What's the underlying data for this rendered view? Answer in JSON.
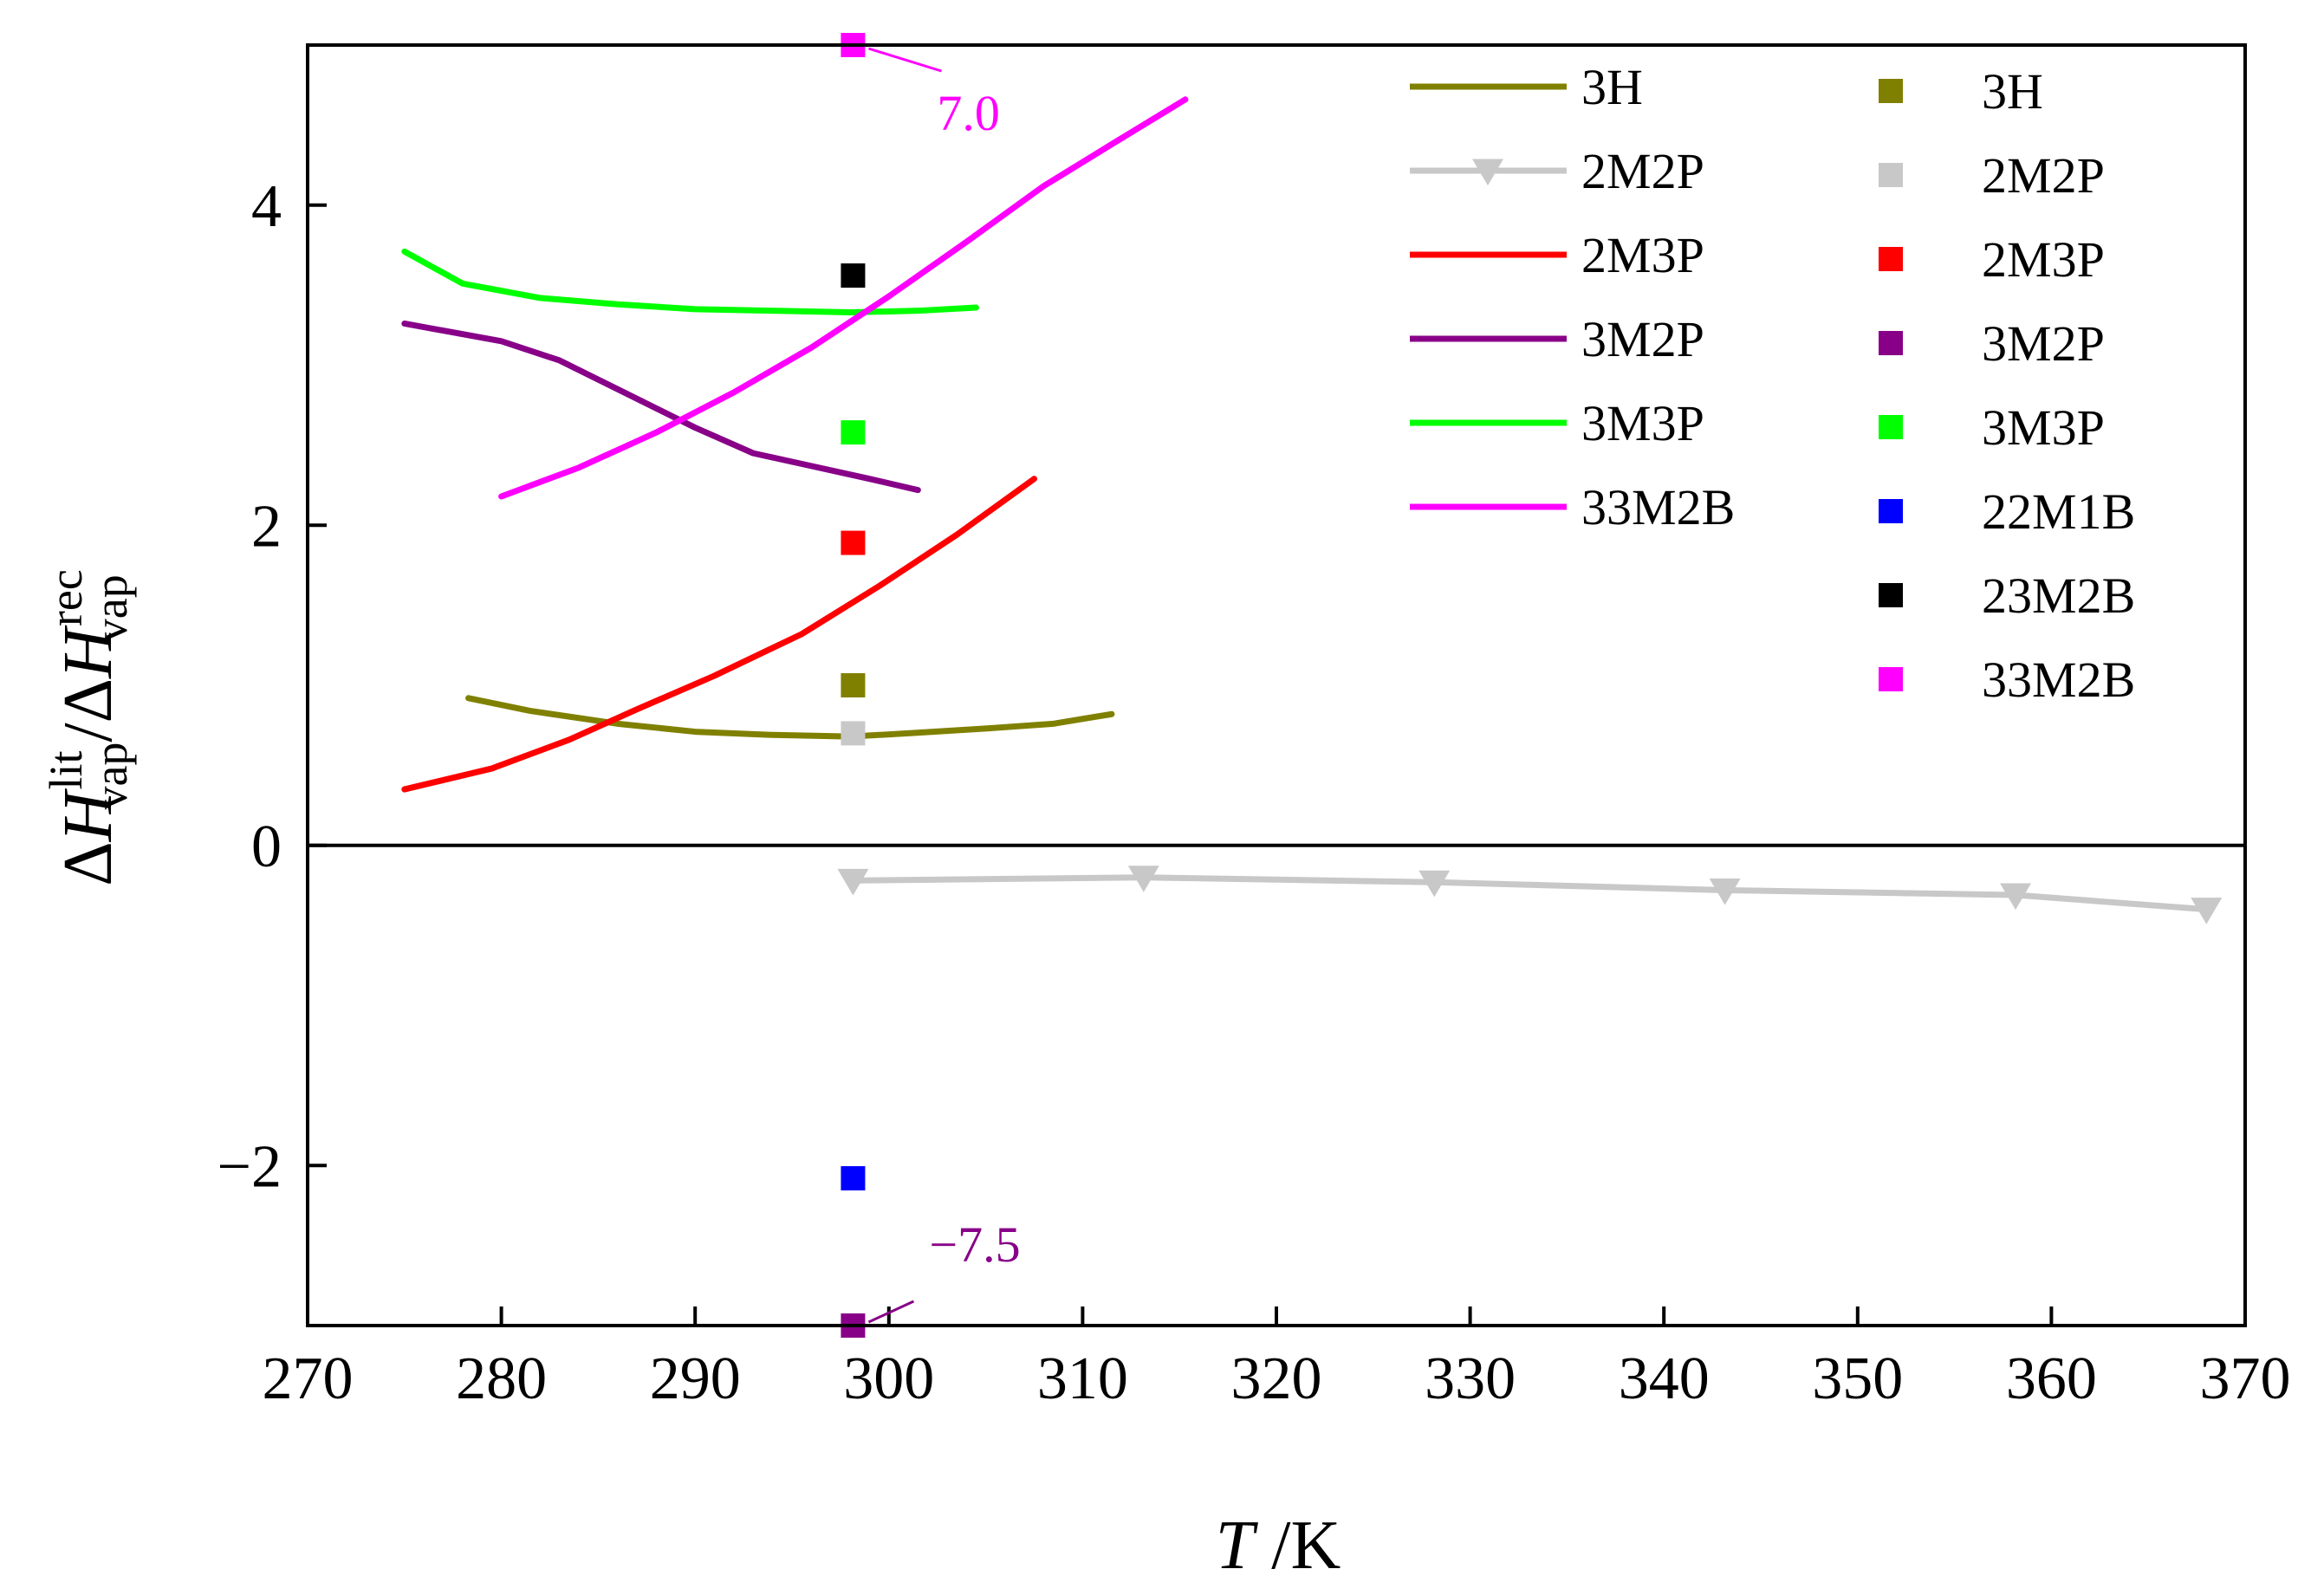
{
  "chart_data": {
    "type": "line",
    "xlim": [
      270,
      370
    ],
    "ylim": [
      -3.0,
      5.0
    ],
    "xticks": [
      270,
      280,
      290,
      300,
      310,
      320,
      330,
      340,
      350,
      360,
      370
    ],
    "yticks": [
      -2,
      0,
      2,
      4
    ],
    "ytick_labels": [
      "−2",
      "0",
      "2",
      "4"
    ],
    "xlabel": {
      "italic": "T",
      "rest": " /K"
    },
    "ylabel": "ΔH_vap^lit / ΔH_vap^rec",
    "zero_line": true,
    "line_series": [
      {
        "name": "3H",
        "color": "#808000",
        "x": [
          278.3,
          281.5,
          286.0,
          290.0,
          294.0,
          298.0,
          301.0,
          305.0,
          308.5,
          311.5
        ],
        "y": [
          0.92,
          0.84,
          0.76,
          0.71,
          0.69,
          0.68,
          0.7,
          0.73,
          0.76,
          0.82
        ]
      },
      {
        "name": "2M2P",
        "color": "#c8c8c8",
        "marker": "triangle-down",
        "x": [
          298.15,
          313.15,
          328.15,
          343.15,
          358.15,
          368.0
        ],
        "y": [
          -0.22,
          -0.2,
          -0.23,
          -0.28,
          -0.31,
          -0.4
        ]
      },
      {
        "name": "2M3P",
        "color": "#ff0000",
        "x": [
          275.0,
          279.5,
          283.5,
          287.0,
          291.0,
          295.5,
          299.5,
          303.5,
          307.5
        ],
        "y": [
          0.35,
          0.48,
          0.66,
          0.85,
          1.06,
          1.32,
          1.62,
          1.94,
          2.29
        ]
      },
      {
        "name": "3M2P",
        "color": "#880088",
        "x": [
          275.0,
          280.0,
          283.0,
          286.5,
          290.0,
          293.0,
          296.0,
          299.0,
          301.5
        ],
        "y": [
          3.26,
          3.15,
          3.03,
          2.82,
          2.61,
          2.45,
          2.37,
          2.29,
          2.22
        ]
      },
      {
        "name": "3M3P",
        "color": "#00ff00",
        "x": [
          275.0,
          278.0,
          282.0,
          286.0,
          290.0,
          294.0,
          298.0,
          301.5,
          304.5
        ],
        "y": [
          3.71,
          3.51,
          3.42,
          3.38,
          3.35,
          3.34,
          3.33,
          3.34,
          3.36
        ]
      },
      {
        "name": "33M2B",
        "color": "#ff00ff",
        "x": [
          280.0,
          284.0,
          288.0,
          292.0,
          296.0,
          300.0,
          304.0,
          308.0,
          311.5,
          315.3
        ],
        "y": [
          2.18,
          2.36,
          2.58,
          2.83,
          3.11,
          3.43,
          3.77,
          4.12,
          4.38,
          4.66
        ]
      }
    ],
    "point_series": [
      {
        "name": "3H",
        "color": "#808000",
        "x": 298.15,
        "y": 1.0
      },
      {
        "name": "2M2P",
        "color": "#c8c8c8",
        "x": 298.15,
        "y": 0.7
      },
      {
        "name": "2M3P",
        "color": "#ff0000",
        "x": 298.15,
        "y": 1.89
      },
      {
        "name": "3M2P",
        "color": "#880088",
        "x": 298.15,
        "y": -3.0
      },
      {
        "name": "3M3P",
        "color": "#00ff00",
        "x": 298.15,
        "y": 2.58
      },
      {
        "name": "22M1B",
        "color": "#0000ff",
        "x": 298.15,
        "y": -2.08
      },
      {
        "name": "23M2B",
        "color": "#000000",
        "x": 298.15,
        "y": 3.56
      },
      {
        "name": "33M2B",
        "color": "#ff00ff",
        "x": 298.15,
        "y": 5.0
      }
    ],
    "annotations": [
      {
        "text": "7.0",
        "color": "#ff00ff",
        "x": 298.15,
        "y": 5.0,
        "anchor": "lower-right"
      },
      {
        "text": "−7.5",
        "color": "#880088",
        "x": 298.15,
        "y": -3.0,
        "anchor": "upper-right"
      }
    ]
  }
}
